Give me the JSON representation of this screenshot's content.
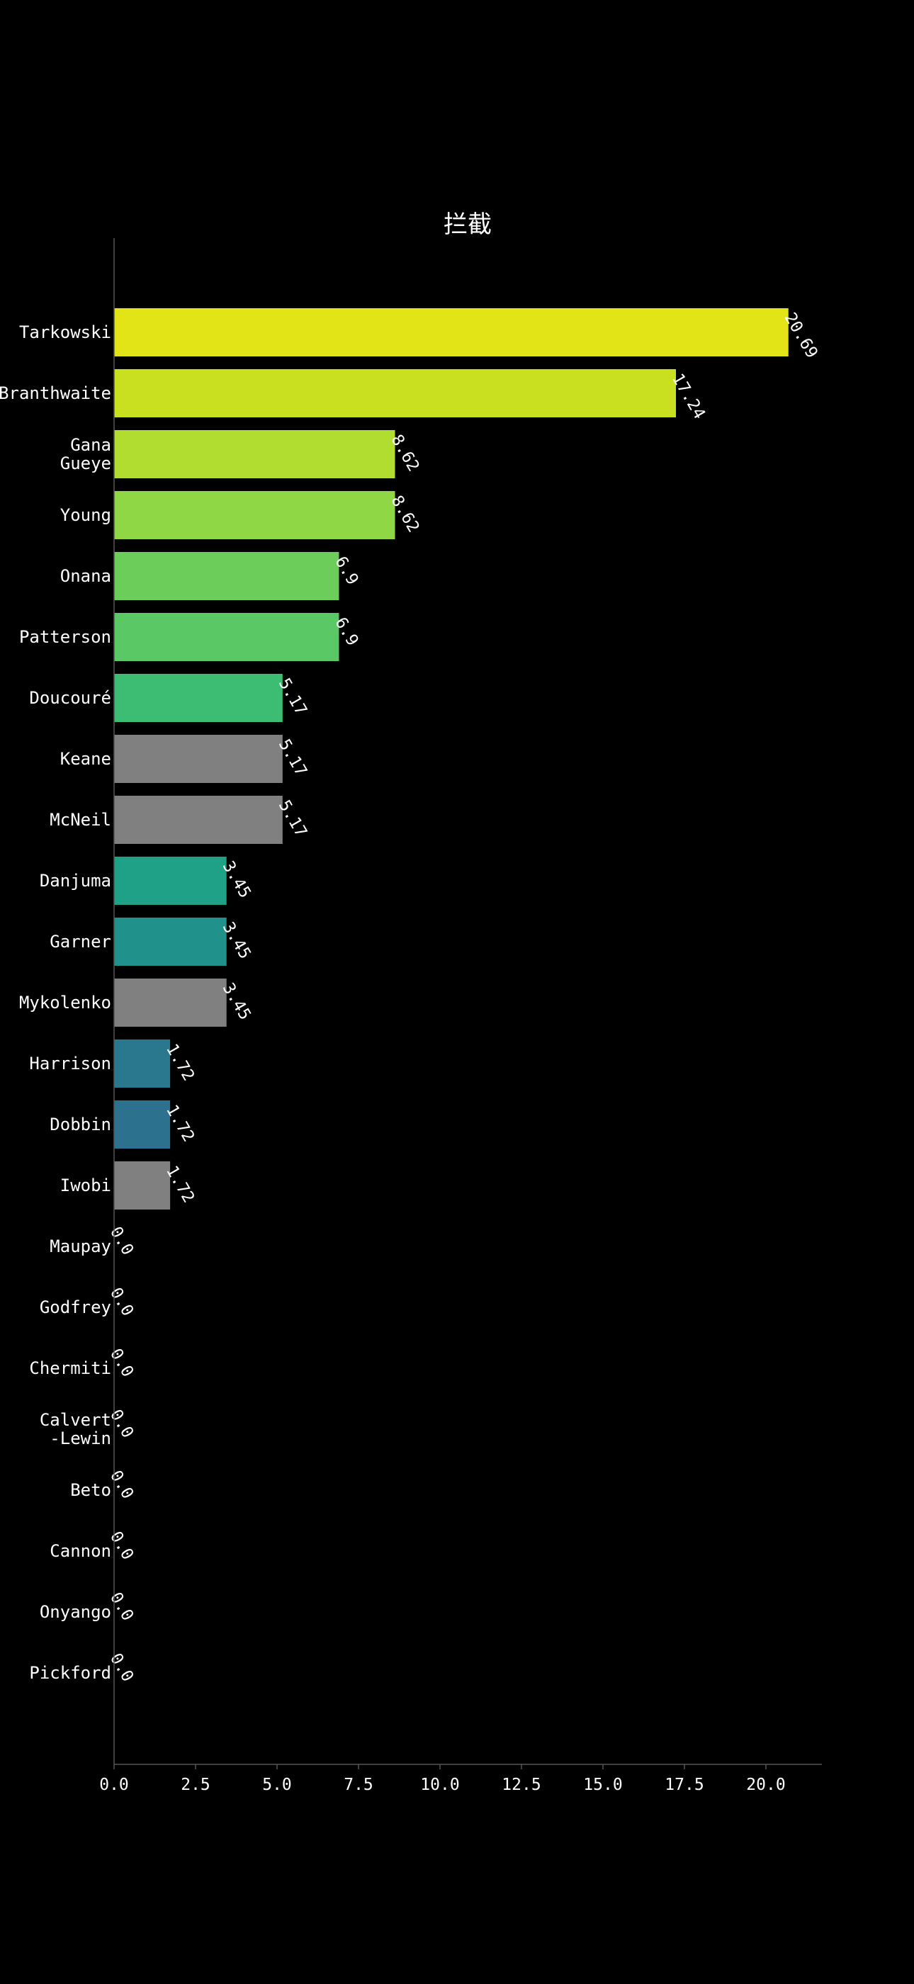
{
  "chart_data": {
    "type": "bar",
    "orientation": "horizontal",
    "title": "拦截",
    "xlabel": "",
    "ylabel": "",
    "xlim": [
      0,
      21.7
    ],
    "xticks": [
      0.0,
      2.5,
      5.0,
      7.5,
      10.0,
      12.5,
      15.0,
      17.5,
      20.0
    ],
    "xtick_labels": [
      "0.0",
      "2.5",
      "5.0",
      "7.5",
      "10.0",
      "12.5",
      "15.0",
      "17.5",
      "20.0"
    ],
    "grid": false,
    "categories": [
      "Tarkowski",
      "Branthwaite",
      "Gana\nGueye",
      "Young",
      "Onana",
      "Patterson",
      "Doucouré",
      "Keane",
      "McNeil",
      "Danjuma",
      "Garner",
      "Mykolenko",
      "Harrison",
      "Dobbin",
      "Iwobi",
      "Maupay",
      "Godfrey",
      "Chermiti",
      "Calvert\n-Lewin",
      "Beto",
      "Cannon",
      "Onyango",
      "Pickford"
    ],
    "values": [
      20.69,
      17.24,
      8.62,
      8.62,
      6.9,
      6.9,
      5.17,
      5.17,
      5.17,
      3.45,
      3.45,
      3.45,
      1.72,
      1.72,
      1.72,
      0.0,
      0.0,
      0.0,
      0.0,
      0.0,
      0.0,
      0.0,
      0.0
    ],
    "value_labels": [
      "20.69",
      "17.24",
      "8.62",
      "8.62",
      "6.9",
      "6.9",
      "5.17",
      "5.17",
      "5.17",
      "3.45",
      "3.45",
      "3.45",
      "1.72",
      "1.72",
      "1.72",
      "0.0",
      "0.0",
      "0.0",
      "0.0",
      "0.0",
      "0.0",
      "0.0",
      "0.0"
    ],
    "colors": [
      "#e2e418",
      "#c8e020",
      "#b0dd2f",
      "#8fd744",
      "#6ccd5a",
      "#5ac864",
      "#3dbc74",
      "#808080",
      "#808080",
      "#1fa188",
      "#21918c",
      "#808080",
      "#2a788e",
      "#2c728e",
      "#808080",
      "#808080",
      "#808080",
      "#808080",
      "#808080",
      "#808080",
      "#808080",
      "#808080",
      "#808080"
    ],
    "background": "#000000",
    "text_color": "#ffffff",
    "axis_color": "#555555"
  }
}
